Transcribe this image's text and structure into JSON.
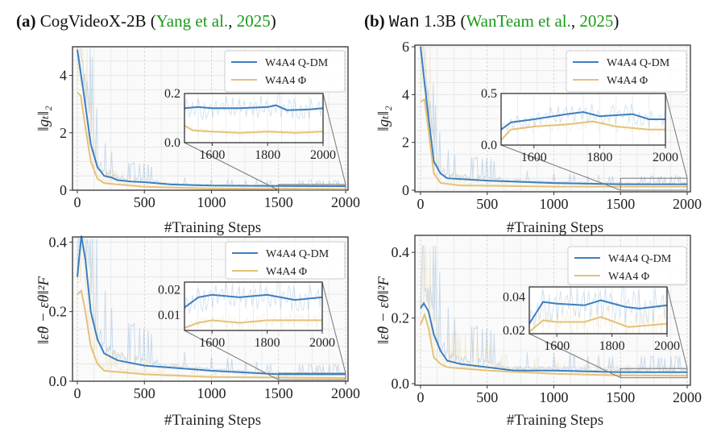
{
  "titles": [
    {
      "tag": "(a)",
      "model": "CogVideoX-2B",
      "open": " (",
      "cite_authors": "Yang et al.",
      "comma": ", ",
      "cite_year": "2025",
      "close": ")"
    },
    {
      "tag": "(b)",
      "model_mono": "Wan",
      "model": " 1.3B",
      "open": " (",
      "cite_authors": "WanTeam et al.",
      "comma": ", ",
      "cite_year": "2025",
      "close": ")"
    }
  ],
  "colors": {
    "qdm": "#3d7fbf",
    "phi": "#e3c27a",
    "cite": "#1a9a1a"
  },
  "chart_data": [
    {
      "type": "line",
      "panel": "a-top",
      "xlabel": "#Training Steps",
      "ylabel": "‖gₜ‖₂",
      "xlim": [
        0,
        2000
      ],
      "ylim": [
        0,
        5
      ],
      "xticks": [
        0,
        500,
        1000,
        1500,
        2000
      ],
      "yticks": [
        0,
        2,
        4
      ],
      "grid": true,
      "legend": "top-right",
      "series": [
        {
          "name": "W4A4 Q-DM",
          "color": "#3d7fbf",
          "points": [
            [
              0,
              4.9
            ],
            [
              50,
              3.3
            ],
            [
              100,
              1.6
            ],
            [
              150,
              0.8
            ],
            [
              200,
              0.5
            ],
            [
              250,
              0.45
            ],
            [
              300,
              0.35
            ],
            [
              400,
              0.3
            ],
            [
              500,
              0.28
            ],
            [
              700,
              0.2
            ],
            [
              1000,
              0.16
            ],
            [
              1500,
              0.15
            ],
            [
              2000,
              0.14
            ]
          ]
        },
        {
          "name": "W4A4 Φ",
          "color": "#e3c27a",
          "points": [
            [
              0,
              3.4
            ],
            [
              25,
              3.3
            ],
            [
              50,
              2.5
            ],
            [
              100,
              1.0
            ],
            [
              150,
              0.4
            ],
            [
              200,
              0.25
            ],
            [
              300,
              0.2
            ],
            [
              500,
              0.12
            ],
            [
              1000,
              0.06
            ],
            [
              2000,
              0.04
            ]
          ]
        }
      ],
      "inset": {
        "xlim": [
          1500,
          2000
        ],
        "ylim": [
          0,
          0.2
        ],
        "xticks": [
          1600,
          1800,
          2000
        ],
        "yticks": [
          0.0,
          0.2
        ],
        "ytick_labels": [
          "0.0",
          "0.2"
        ],
        "series": [
          {
            "points": [
              [
                1500,
                0.14
              ],
              [
                1550,
                0.145
              ],
              [
                1600,
                0.14
              ],
              [
                1700,
                0.14
              ],
              [
                1800,
                0.145
              ],
              [
                1830,
                0.152
              ],
              [
                1870,
                0.132
              ],
              [
                1950,
                0.135
              ],
              [
                2000,
                0.14
              ]
            ]
          },
          {
            "points": [
              [
                1500,
                0.07
              ],
              [
                1530,
                0.05
              ],
              [
                1600,
                0.045
              ],
              [
                1700,
                0.04
              ],
              [
                1800,
                0.045
              ],
              [
                1900,
                0.04
              ],
              [
                2000,
                0.045
              ]
            ]
          }
        ]
      }
    },
    {
      "type": "line",
      "panel": "a-bottom",
      "xlabel": "#Training Steps",
      "ylabel": "‖ε̂θ − εθ‖²F",
      "xlim": [
        0,
        2000
      ],
      "ylim": [
        0,
        0.41
      ],
      "xticks": [
        0,
        500,
        1000,
        1500,
        2000
      ],
      "yticks": [
        0.0,
        0.2,
        0.4
      ],
      "ytick_labels": [
        "0.0",
        "0.2",
        "0.4"
      ],
      "grid": true,
      "legend": "top-right",
      "series": [
        {
          "name": "W4A4 Q-DM",
          "color": "#3d7fbf",
          "points": [
            [
              0,
              0.3
            ],
            [
              30,
              0.42
            ],
            [
              60,
              0.35
            ],
            [
              100,
              0.2
            ],
            [
              150,
              0.12
            ],
            [
              200,
              0.08
            ],
            [
              300,
              0.06
            ],
            [
              500,
              0.045
            ],
            [
              1000,
              0.03
            ],
            [
              1500,
              0.02
            ],
            [
              2000,
              0.02
            ]
          ]
        },
        {
          "name": "W4A4 Φ",
          "color": "#e3c27a",
          "points": [
            [
              0,
              0.25
            ],
            [
              30,
              0.26
            ],
            [
              60,
              0.2
            ],
            [
              100,
              0.1
            ],
            [
              150,
              0.05
            ],
            [
              200,
              0.03
            ],
            [
              500,
              0.02
            ],
            [
              1000,
              0.012
            ],
            [
              2000,
              0.009
            ]
          ]
        }
      ],
      "inset": {
        "xlim": [
          1500,
          2000
        ],
        "ylim": [
          0.004,
          0.023
        ],
        "xticks": [
          1600,
          1800,
          2000
        ],
        "yticks": [
          0.01,
          0.02
        ],
        "ytick_labels": [
          "0.01",
          "0.02"
        ],
        "series": [
          {
            "points": [
              [
                1500,
                0.013
              ],
              [
                1550,
                0.017
              ],
              [
                1600,
                0.018
              ],
              [
                1700,
                0.017
              ],
              [
                1800,
                0.018
              ],
              [
                1900,
                0.016
              ],
              [
                2000,
                0.017
              ]
            ]
          },
          {
            "points": [
              [
                1500,
                0.005
              ],
              [
                1550,
                0.007
              ],
              [
                1600,
                0.008
              ],
              [
                1700,
                0.007
              ],
              [
                1800,
                0.008
              ],
              [
                2000,
                0.008
              ]
            ]
          }
        ]
      }
    },
    {
      "type": "line",
      "panel": "b-top",
      "xlabel": "#Training Steps",
      "ylabel": "‖gₜ‖₂",
      "xlim": [
        0,
        2000
      ],
      "ylim": [
        0,
        6
      ],
      "xticks": [
        0,
        500,
        1000,
        1500,
        2000
      ],
      "yticks": [
        0,
        2,
        4,
        6
      ],
      "grid": true,
      "legend": "top-right",
      "series": [
        {
          "name": "W4A4 Q-DM",
          "color": "#3d7fbf",
          "points": [
            [
              0,
              6
            ],
            [
              50,
              3.5
            ],
            [
              100,
              1.2
            ],
            [
              150,
              0.7
            ],
            [
              200,
              0.5
            ],
            [
              500,
              0.4
            ],
            [
              1000,
              0.3
            ],
            [
              1500,
              0.25
            ],
            [
              2000,
              0.25
            ]
          ]
        },
        {
          "name": "W4A4 Φ",
          "color": "#e3c27a",
          "points": [
            [
              0,
              3.7
            ],
            [
              30,
              3.8
            ],
            [
              60,
              2.5
            ],
            [
              100,
              0.7
            ],
            [
              150,
              0.3
            ],
            [
              300,
              0.2
            ],
            [
              1000,
              0.15
            ],
            [
              2000,
              0.15
            ]
          ]
        }
      ],
      "inset": {
        "xlim": [
          1500,
          2000
        ],
        "ylim": [
          0,
          0.5
        ],
        "xticks": [
          1600,
          1800,
          2000
        ],
        "yticks": [
          0.0,
          0.5
        ],
        "ytick_labels": [
          "0.0",
          "0.5"
        ],
        "series": [
          {
            "points": [
              [
                1500,
                0.15
              ],
              [
                1530,
                0.22
              ],
              [
                1600,
                0.25
              ],
              [
                1700,
                0.3
              ],
              [
                1750,
                0.32
              ],
              [
                1800,
                0.28
              ],
              [
                1900,
                0.3
              ],
              [
                1950,
                0.25
              ],
              [
                2000,
                0.25
              ]
            ]
          },
          {
            "points": [
              [
                1500,
                0.05
              ],
              [
                1530,
                0.15
              ],
              [
                1600,
                0.18
              ],
              [
                1700,
                0.2
              ],
              [
                1780,
                0.23
              ],
              [
                1850,
                0.18
              ],
              [
                1950,
                0.15
              ],
              [
                2000,
                0.15
              ]
            ]
          }
        ]
      }
    },
    {
      "type": "line",
      "panel": "b-bottom",
      "xlabel": "#Training Steps",
      "ylabel": "‖ε̂θ − εθ‖²F",
      "xlim": [
        0,
        2000
      ],
      "ylim": [
        0,
        0.42
      ],
      "xticks": [
        0,
        500,
        1000,
        1500,
        2000
      ],
      "yticks": [
        0.0,
        0.2,
        0.4
      ],
      "ytick_labels": [
        "0.0",
        "0.2",
        "0.4"
      ],
      "grid": true,
      "legend": "top-right",
      "series": [
        {
          "name": "W4A4 Q-DM",
          "color": "#3d7fbf",
          "points": [
            [
              0,
              0.23
            ],
            [
              25,
              0.245
            ],
            [
              60,
              0.22
            ],
            [
              100,
              0.15
            ],
            [
              150,
              0.1
            ],
            [
              200,
              0.07
            ],
            [
              300,
              0.06
            ],
            [
              400,
              0.055
            ],
            [
              500,
              0.05
            ],
            [
              700,
              0.04
            ],
            [
              1000,
              0.04
            ],
            [
              1500,
              0.035
            ],
            [
              2000,
              0.035
            ]
          ]
        },
        {
          "name": "W4A4 Φ",
          "color": "#e3c27a",
          "points": [
            [
              0,
              0.18
            ],
            [
              30,
              0.21
            ],
            [
              60,
              0.17
            ],
            [
              100,
              0.08
            ],
            [
              150,
              0.06
            ],
            [
              200,
              0.05
            ],
            [
              500,
              0.04
            ],
            [
              1000,
              0.03
            ],
            [
              1500,
              0.025
            ],
            [
              2000,
              0.024
            ]
          ]
        }
      ],
      "inset": {
        "xlim": [
          1500,
          2000
        ],
        "ylim": [
          0.018,
          0.046
        ],
        "xticks": [
          1600,
          1800,
          2000
        ],
        "yticks": [
          0.02,
          0.04
        ],
        "ytick_labels": [
          "0.02",
          "0.04"
        ],
        "series": [
          {
            "points": [
              [
                1500,
                0.024
              ],
              [
                1550,
                0.037
              ],
              [
                1600,
                0.036
              ],
              [
                1700,
                0.035
              ],
              [
                1760,
                0.038
              ],
              [
                1850,
                0.034
              ],
              [
                1900,
                0.033
              ],
              [
                2000,
                0.035
              ]
            ]
          },
          {
            "points": [
              [
                1500,
                0.019
              ],
              [
                1550,
                0.026
              ],
              [
                1600,
                0.025
              ],
              [
                1700,
                0.025
              ],
              [
                1760,
                0.028
              ],
              [
                1860,
                0.022
              ],
              [
                2000,
                0.024
              ]
            ]
          }
        ]
      }
    }
  ]
}
